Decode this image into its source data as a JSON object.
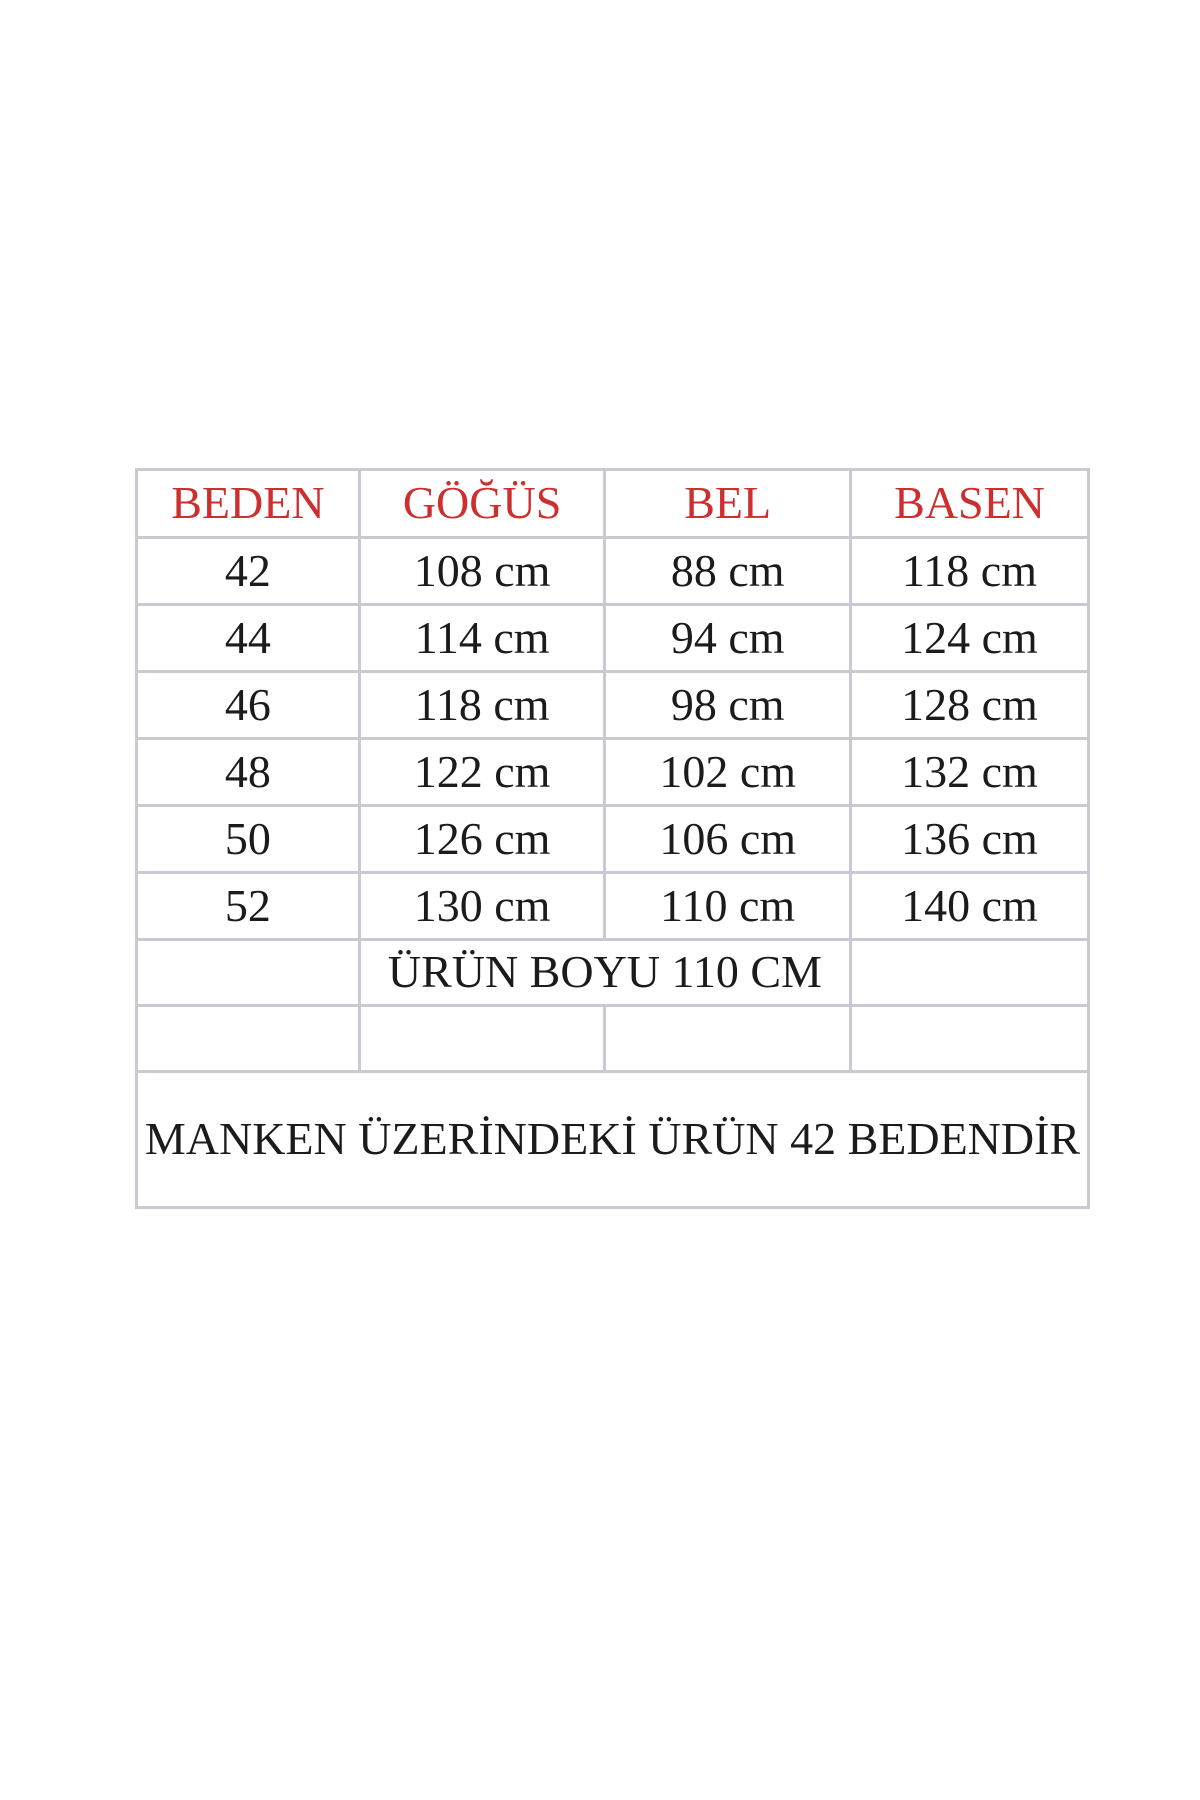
{
  "colors": {
    "accent_red": "#cd2e2e",
    "text_black": "#1b1b1b",
    "table_border": "#c9c9d1",
    "page_background": "#ffffff"
  },
  "chart_data": {
    "type": "table",
    "columns": [
      "BEDEN",
      "GÖĞÜS",
      "BEL",
      "BASEN"
    ],
    "rows": [
      [
        "42",
        "108 cm",
        "88 cm",
        "118 cm"
      ],
      [
        "44",
        "114 cm",
        "94 cm",
        "124 cm"
      ],
      [
        "46",
        "118 cm",
        "98 cm",
        "128 cm"
      ],
      [
        "48",
        "122 cm",
        "102 cm",
        "132 cm"
      ],
      [
        "50",
        "126 cm",
        "106 cm",
        "136 cm"
      ],
      [
        "52",
        "130 cm",
        "110 cm",
        "140 cm"
      ]
    ],
    "notes": {
      "product_length": "ÜRÜN BOYU 110 CM",
      "model_size": "MANKEN ÜZERİNDEKİ ÜRÜN 42 BEDENDİR"
    }
  }
}
